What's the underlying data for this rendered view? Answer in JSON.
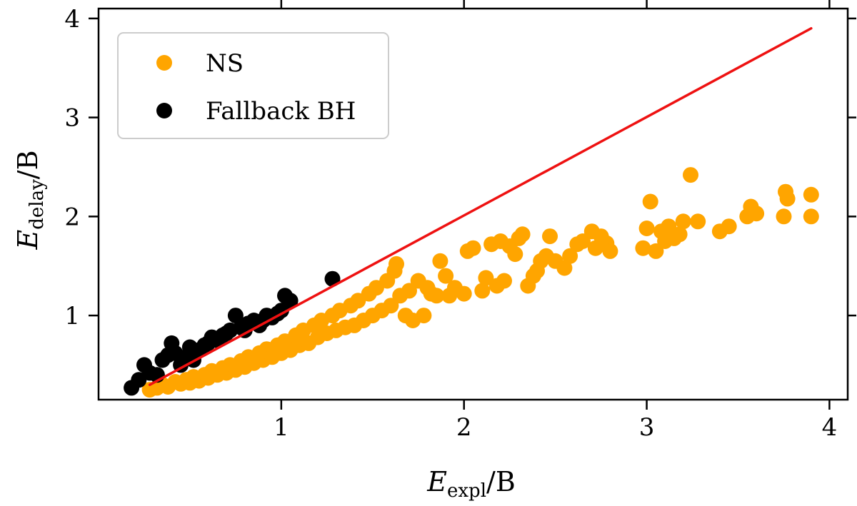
{
  "chart_data": {
    "type": "scatter",
    "xlabel": {
      "main": "E",
      "sub": "expl",
      "suffix": "/B"
    },
    "ylabel": {
      "main": "E",
      "sub": "delay",
      "suffix": "/B"
    },
    "xlim": [
      0.0,
      4.1
    ],
    "ylim": [
      0.15,
      4.1
    ],
    "xticks": [
      1,
      2,
      3,
      4
    ],
    "xtick_labels": [
      "1",
      "2",
      "3",
      "4"
    ],
    "yticks": [
      1,
      2,
      3,
      4
    ],
    "ytick_labels": [
      "1",
      "2",
      "3",
      "4"
    ],
    "grid": false,
    "legend_position": "top-left",
    "reference_line": {
      "color": "#ee1111",
      "points": [
        [
          0.28,
          0.3
        ],
        [
          3.9,
          3.9
        ]
      ]
    },
    "series": [
      {
        "name": "NS",
        "color": "#ffa500",
        "points": [
          [
            0.28,
            0.25
          ],
          [
            0.32,
            0.27
          ],
          [
            0.35,
            0.3
          ],
          [
            0.38,
            0.28
          ],
          [
            0.42,
            0.33
          ],
          [
            0.45,
            0.31
          ],
          [
            0.48,
            0.35
          ],
          [
            0.5,
            0.32
          ],
          [
            0.52,
            0.38
          ],
          [
            0.55,
            0.34
          ],
          [
            0.58,
            0.4
          ],
          [
            0.6,
            0.37
          ],
          [
            0.62,
            0.44
          ],
          [
            0.65,
            0.4
          ],
          [
            0.68,
            0.47
          ],
          [
            0.7,
            0.42
          ],
          [
            0.72,
            0.5
          ],
          [
            0.75,
            0.45
          ],
          [
            0.78,
            0.54
          ],
          [
            0.8,
            0.48
          ],
          [
            0.82,
            0.58
          ],
          [
            0.85,
            0.52
          ],
          [
            0.88,
            0.62
          ],
          [
            0.9,
            0.55
          ],
          [
            0.92,
            0.66
          ],
          [
            0.95,
            0.58
          ],
          [
            0.98,
            0.7
          ],
          [
            1.0,
            0.62
          ],
          [
            1.02,
            0.74
          ],
          [
            1.05,
            0.65
          ],
          [
            1.08,
            0.8
          ],
          [
            1.1,
            0.7
          ],
          [
            1.12,
            0.85
          ],
          [
            1.15,
            0.72
          ],
          [
            1.18,
            0.9
          ],
          [
            1.2,
            0.78
          ],
          [
            1.22,
            0.95
          ],
          [
            1.25,
            0.82
          ],
          [
            1.28,
            1.0
          ],
          [
            1.3,
            0.85
          ],
          [
            1.32,
            1.05
          ],
          [
            1.35,
            0.88
          ],
          [
            1.38,
            1.1
          ],
          [
            1.4,
            0.9
          ],
          [
            1.42,
            1.15
          ],
          [
            1.45,
            0.95
          ],
          [
            1.48,
            1.22
          ],
          [
            1.5,
            1.0
          ],
          [
            1.52,
            1.28
          ],
          [
            1.55,
            1.05
          ],
          [
            1.58,
            1.35
          ],
          [
            1.6,
            1.1
          ],
          [
            1.62,
            1.45
          ],
          [
            1.63,
            1.52
          ],
          [
            1.65,
            1.2
          ],
          [
            1.68,
            1.0
          ],
          [
            1.7,
            1.25
          ],
          [
            1.72,
            0.95
          ],
          [
            1.75,
            1.35
          ],
          [
            1.78,
            1.0
          ],
          [
            1.8,
            1.28
          ],
          [
            1.82,
            1.22
          ],
          [
            1.85,
            1.2
          ],
          [
            1.87,
            1.55
          ],
          [
            1.9,
            1.4
          ],
          [
            1.92,
            1.2
          ],
          [
            1.95,
            1.28
          ],
          [
            2.0,
            1.22
          ],
          [
            2.02,
            1.65
          ],
          [
            2.05,
            1.68
          ],
          [
            2.1,
            1.25
          ],
          [
            2.12,
            1.38
          ],
          [
            2.15,
            1.72
          ],
          [
            2.18,
            1.3
          ],
          [
            2.2,
            1.75
          ],
          [
            2.22,
            1.35
          ],
          [
            2.25,
            1.7
          ],
          [
            2.28,
            1.62
          ],
          [
            2.3,
            1.78
          ],
          [
            2.32,
            1.82
          ],
          [
            2.35,
            1.3
          ],
          [
            2.38,
            1.4
          ],
          [
            2.4,
            1.45
          ],
          [
            2.42,
            1.55
          ],
          [
            2.45,
            1.6
          ],
          [
            2.47,
            1.8
          ],
          [
            2.5,
            1.55
          ],
          [
            2.55,
            1.48
          ],
          [
            2.58,
            1.6
          ],
          [
            2.62,
            1.72
          ],
          [
            2.65,
            1.75
          ],
          [
            2.7,
            1.85
          ],
          [
            2.72,
            1.68
          ],
          [
            2.75,
            1.8
          ],
          [
            2.78,
            1.73
          ],
          [
            2.8,
            1.65
          ],
          [
            2.98,
            1.68
          ],
          [
            3.0,
            1.88
          ],
          [
            3.02,
            2.15
          ],
          [
            3.05,
            1.65
          ],
          [
            3.08,
            1.85
          ],
          [
            3.1,
            1.75
          ],
          [
            3.12,
            1.9
          ],
          [
            3.15,
            1.78
          ],
          [
            3.18,
            1.82
          ],
          [
            3.2,
            1.95
          ],
          [
            3.24,
            2.42
          ],
          [
            3.28,
            1.95
          ],
          [
            3.4,
            1.85
          ],
          [
            3.45,
            1.9
          ],
          [
            3.55,
            2.0
          ],
          [
            3.57,
            2.1
          ],
          [
            3.6,
            2.03
          ],
          [
            3.75,
            2.0
          ],
          [
            3.76,
            2.25
          ],
          [
            3.77,
            2.18
          ],
          [
            3.9,
            2.22
          ],
          [
            3.9,
            2.0
          ]
        ]
      },
      {
        "name": "Fallback BH",
        "color": "#000000",
        "points": [
          [
            0.18,
            0.27
          ],
          [
            0.22,
            0.35
          ],
          [
            0.25,
            0.5
          ],
          [
            0.28,
            0.42
          ],
          [
            0.32,
            0.4
          ],
          [
            0.35,
            0.55
          ],
          [
            0.38,
            0.6
          ],
          [
            0.4,
            0.72
          ],
          [
            0.42,
            0.62
          ],
          [
            0.45,
            0.5
          ],
          [
            0.48,
            0.58
          ],
          [
            0.5,
            0.68
          ],
          [
            0.52,
            0.55
          ],
          [
            0.55,
            0.65
          ],
          [
            0.58,
            0.7
          ],
          [
            0.6,
            0.72
          ],
          [
            0.62,
            0.78
          ],
          [
            0.65,
            0.75
          ],
          [
            0.68,
            0.8
          ],
          [
            0.7,
            0.82
          ],
          [
            0.72,
            0.85
          ],
          [
            0.75,
            1.0
          ],
          [
            0.78,
            0.88
          ],
          [
            0.8,
            0.85
          ],
          [
            0.82,
            0.92
          ],
          [
            0.85,
            0.95
          ],
          [
            0.88,
            0.9
          ],
          [
            0.9,
            0.95
          ],
          [
            0.92,
            1.0
          ],
          [
            0.95,
            0.98
          ],
          [
            0.98,
            1.02
          ],
          [
            1.0,
            1.05
          ],
          [
            1.02,
            1.2
          ],
          [
            1.05,
            1.15
          ],
          [
            1.28,
            1.37
          ]
        ]
      }
    ]
  }
}
